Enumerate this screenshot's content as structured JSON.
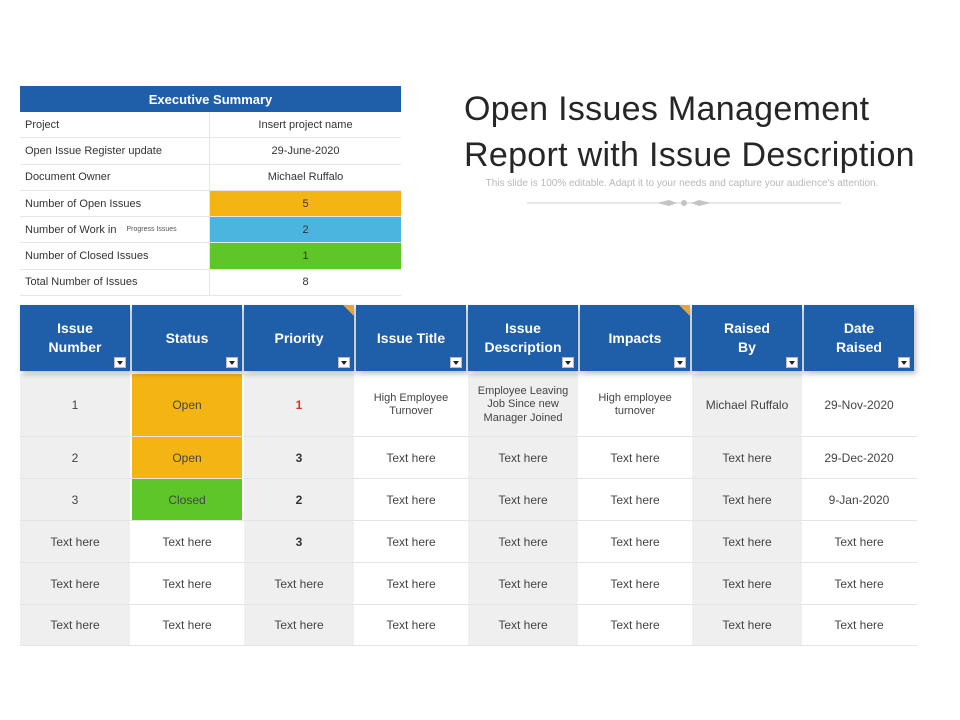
{
  "colors": {
    "header_blue": "#1f5ea8",
    "status_open": "#f4b413",
    "status_closed": "#5ec628",
    "work_in": "#4bb5df",
    "corner": "#e8a33d",
    "priority_high": "#e0301e"
  },
  "executive_summary": {
    "title": "Executive Summary",
    "rows": [
      {
        "label": "Project",
        "value": "Insert project name"
      },
      {
        "label": "Open Issue Register update",
        "value": "29-June-2020"
      },
      {
        "label": "Document Owner",
        "value": "Michael Ruffalo"
      },
      {
        "label": "Number of Open Issues",
        "value": "5"
      },
      {
        "label": "Number of Work in",
        "sublabel": "Progress Issues",
        "value": "2"
      },
      {
        "label": "Number of Closed Issues",
        "value": "1"
      },
      {
        "label": "Total Number of Issues",
        "value": "8"
      }
    ]
  },
  "title": {
    "line1": "Open Issues Management",
    "line2": "Report with Issue Description",
    "subtitle": "This slide is 100% editable. Adapt it to your needs and capture your audience's attention."
  },
  "table": {
    "headers": [
      {
        "line1": "Issue",
        "line2": "Number"
      },
      {
        "line1": "Status",
        "line2": ""
      },
      {
        "line1": "Priority",
        "line2": ""
      },
      {
        "line1": "Issue Title",
        "line2": ""
      },
      {
        "line1": "Issue",
        "line2": "Description"
      },
      {
        "line1": "Impacts",
        "line2": ""
      },
      {
        "line1": "Raised",
        "line2": "By"
      },
      {
        "line1": "Date",
        "line2": "Raised"
      }
    ],
    "rows": [
      {
        "number": "1",
        "status": "Open",
        "priority": "1",
        "title_l1": "High Employee",
        "title_l2": "Turnover",
        "desc_l1": "Employee Leaving",
        "desc_l2": "Job Since new",
        "desc_l3": "Manager Joined",
        "impact_l1": "High employee",
        "impact_l2": "turnover",
        "raised_by": "Michael Ruffalo",
        "date": "29-Nov-2020"
      },
      {
        "number": "2",
        "status": "Open",
        "priority": "3",
        "title": "Text here",
        "desc": "Text here",
        "impact": "Text here",
        "raised_by": "Text here",
        "date": "29-Dec-2020"
      },
      {
        "number": "3",
        "status": "Closed",
        "priority": "2",
        "title": "Text here",
        "desc": "Text here",
        "impact": "Text here",
        "raised_by": "Text here",
        "date": "9-Jan-2020"
      },
      {
        "number": "Text here",
        "status": "Text here",
        "priority": "3",
        "title": "Text here",
        "desc": "Text here",
        "impact": "Text here",
        "raised_by": "Text here",
        "date": "Text here"
      },
      {
        "number": "Text here",
        "status": "Text here",
        "priority": "Text here",
        "title": "Text here",
        "desc": "Text here",
        "impact": "Text here",
        "raised_by": "Text here",
        "date": "Text here"
      },
      {
        "number": "Text here",
        "status": "Text here",
        "priority": "Text here",
        "title": "Text here",
        "desc": "Text here",
        "impact": "Text here",
        "raised_by": "Text here",
        "date": "Text here"
      }
    ]
  }
}
